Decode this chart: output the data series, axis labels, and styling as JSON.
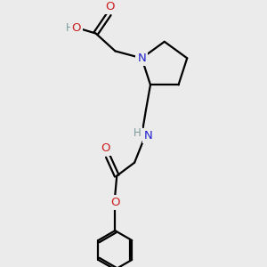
{
  "bg_color": "#ebebeb",
  "atom_colors": {
    "C": "#000000",
    "N": "#2020cc",
    "O": "#cc2020",
    "H": "#7a9a9a"
  },
  "bond_color": "#000000",
  "figsize": [
    3.0,
    3.0
  ],
  "dpi": 100,
  "lw": 1.6,
  "fontsize": 9.5
}
